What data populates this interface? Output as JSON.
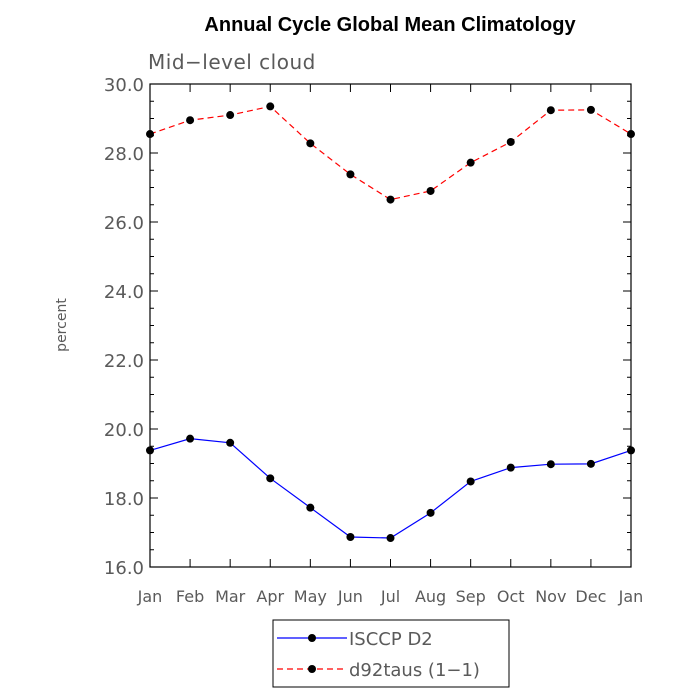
{
  "chart_data": {
    "type": "line",
    "title": "Annual Cycle Global Mean Climatology",
    "subtitle": "Mid−level cloud",
    "xlabel": "",
    "ylabel": "percent",
    "categories": [
      "Jan",
      "Feb",
      "Mar",
      "Apr",
      "May",
      "Jun",
      "Jul",
      "Aug",
      "Sep",
      "Oct",
      "Nov",
      "Dec",
      "Jan"
    ],
    "yticks": [
      "16.0",
      "18.0",
      "20.0",
      "22.0",
      "24.0",
      "26.0",
      "28.0",
      "30.0"
    ],
    "ylim": [
      16,
      30
    ],
    "grid": false,
    "legend_position": "bottom",
    "series": [
      {
        "name": "ISCCP D2",
        "color": "#0000ff",
        "dash": "solid",
        "marker": "circle",
        "values": [
          19.38,
          19.72,
          19.6,
          18.57,
          17.72,
          16.87,
          16.84,
          17.57,
          18.48,
          18.88,
          18.98,
          18.99,
          19.38
        ]
      },
      {
        "name": "d92taus (1−1)",
        "color": "#ff0000",
        "dash": "dashed",
        "marker": "circle",
        "values": [
          28.55,
          28.95,
          29.1,
          29.35,
          28.28,
          27.38,
          26.65,
          26.9,
          27.72,
          28.32,
          29.24,
          29.25,
          28.55
        ]
      }
    ]
  }
}
